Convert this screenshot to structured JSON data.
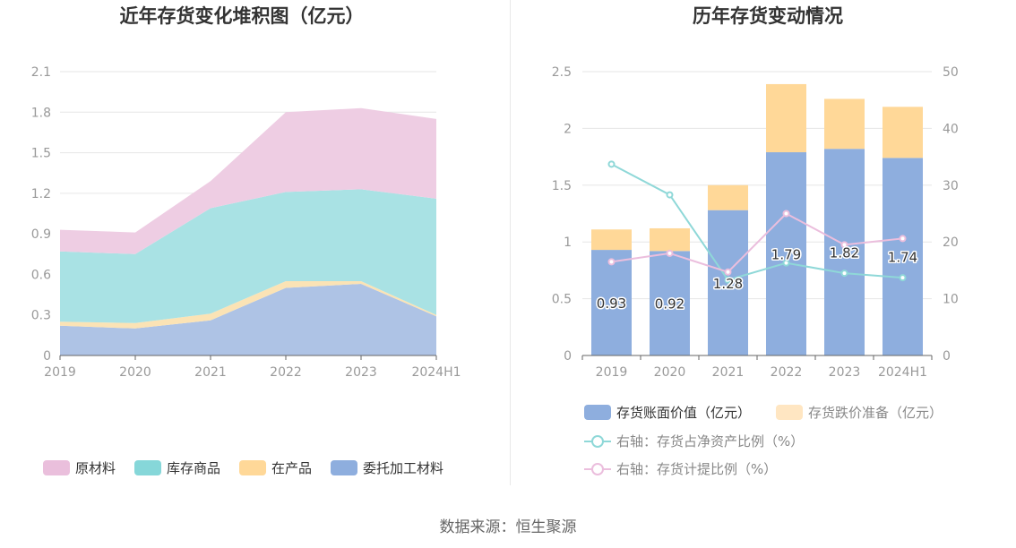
{
  "source_text": "数据来源：恒生聚源",
  "left_chart": {
    "title": "近年存货变化堆积图（亿元）",
    "legend": [
      {
        "label": "原材料",
        "color": "#eabfdc"
      },
      {
        "label": "库存商品",
        "color": "#86d7d9"
      },
      {
        "label": "在产品",
        "color": "#ffd898"
      },
      {
        "label": "委托加工材料",
        "color": "#8eaede"
      }
    ]
  },
  "right_chart": {
    "title": "历年存货变动情况",
    "legend": [
      {
        "label": "存货账面价值（亿元）",
        "color": "#8eaede",
        "kind": "bar"
      },
      {
        "label": "存货跌价准备（亿元）",
        "color": "#ffe6c2",
        "kind": "bar"
      },
      {
        "label": "右轴：存货占净资产比例（%）",
        "color": "#8fd8d8",
        "kind": "line"
      },
      {
        "label": "右轴：存货计提比例（%）",
        "color": "#ebbedd",
        "kind": "line"
      }
    ]
  },
  "chart_data": [
    {
      "type": "area",
      "stacked": true,
      "title": "近年存货变化堆积图（亿元）",
      "categories": [
        "2019",
        "2020",
        "2021",
        "2022",
        "2023",
        "2024H1"
      ],
      "ylim": [
        0,
        2.1
      ],
      "yticks": [
        "0",
        "0.3",
        "0.6",
        "0.9",
        "1.2",
        "1.5",
        "1.8",
        "2.1"
      ],
      "grid": true,
      "legend_position": "bottom",
      "series": [
        {
          "name": "委托加工材料",
          "color": "#aec3e5",
          "values": [
            0.22,
            0.2,
            0.26,
            0.5,
            0.53,
            0.29
          ]
        },
        {
          "name": "在产品",
          "color": "#fbe3b5",
          "values": [
            0.03,
            0.04,
            0.05,
            0.05,
            0.02,
            0.01
          ]
        },
        {
          "name": "库存商品",
          "color": "#a9e2e4",
          "values": [
            0.52,
            0.51,
            0.78,
            0.66,
            0.68,
            0.86
          ]
        },
        {
          "name": "原材料",
          "color": "#eecde3",
          "values": [
            0.16,
            0.16,
            0.2,
            0.59,
            0.6,
            0.59
          ]
        }
      ]
    },
    {
      "type": "bar",
      "stacked": true,
      "title": "历年存货变动情况",
      "categories": [
        "2019",
        "2020",
        "2021",
        "2022",
        "2023",
        "2024H1"
      ],
      "ylim": [
        0,
        2.5
      ],
      "yticks": [
        "0",
        "0.5",
        "1",
        "1.5",
        "2",
        "2.5"
      ],
      "y2lim": [
        0,
        50
      ],
      "y2ticks": [
        "0",
        "10",
        "20",
        "30",
        "40",
        "50"
      ],
      "grid": true,
      "legend_position": "bottom",
      "series": [
        {
          "name": "存货账面价值（亿元）",
          "color": "#8eaede",
          "axis": "left",
          "kind": "bar",
          "values": [
            0.93,
            0.92,
            1.28,
            1.79,
            1.82,
            1.74
          ],
          "labels": [
            "0.93",
            "0.92",
            "1.28",
            "1.79",
            "1.82",
            "1.74"
          ]
        },
        {
          "name": "存货跌价准备（亿元）",
          "color": "#ffd898",
          "axis": "left",
          "kind": "bar",
          "values": [
            0.18,
            0.2,
            0.22,
            0.6,
            0.44,
            0.45
          ]
        },
        {
          "name": "右轴：存货占净资产比例（%）",
          "color": "#8fd8d8",
          "axis": "right",
          "kind": "line",
          "values": [
            33.7,
            28.3,
            13.3,
            16.3,
            14.5,
            13.7
          ]
        },
        {
          "name": "右轴：存货计提比例（%）",
          "color": "#ebbedd",
          "axis": "right",
          "kind": "line",
          "values": [
            16.5,
            18.0,
            14.7,
            25.0,
            19.5,
            20.6
          ]
        }
      ]
    }
  ]
}
